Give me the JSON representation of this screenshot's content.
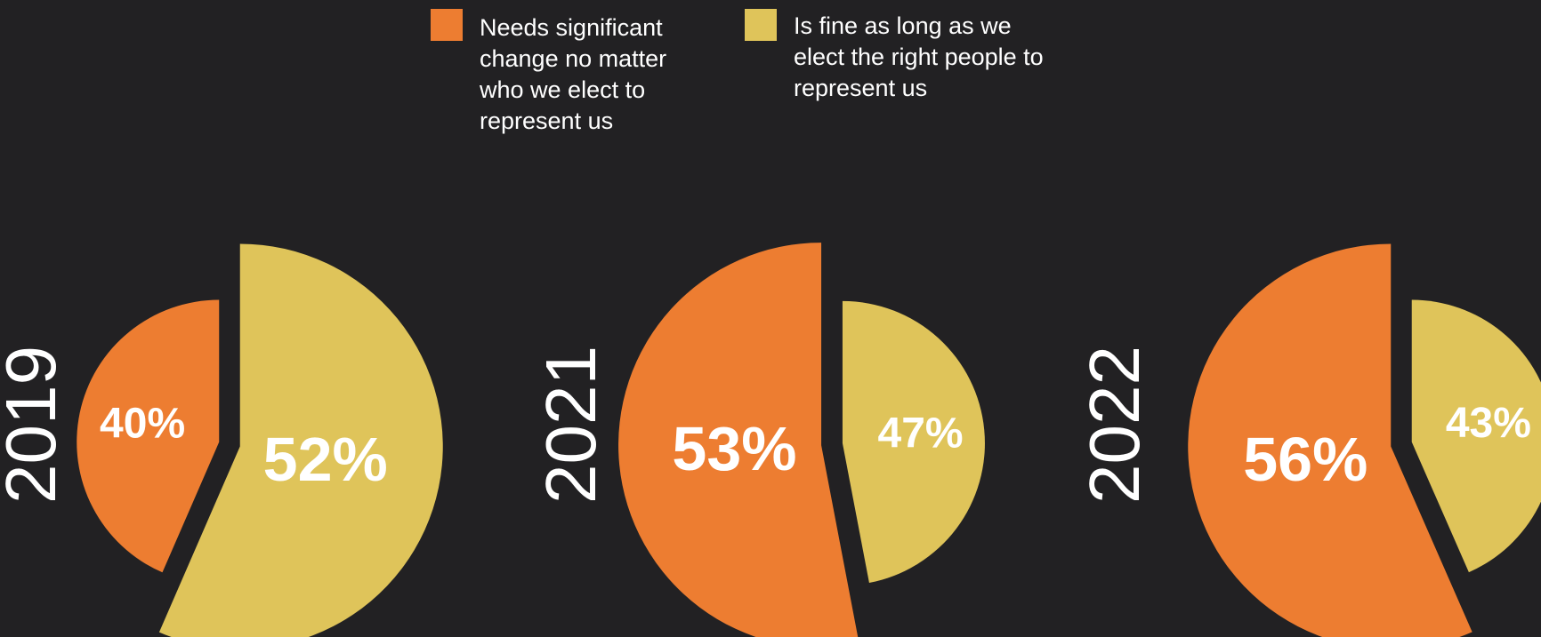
{
  "colors": {
    "background": "#222123",
    "series_a": "#ED7D31",
    "series_b": "#DFC45A"
  },
  "legend": [
    {
      "label": "Needs significant change no matter who we elect to represent us",
      "color": "#ED7D31"
    },
    {
      "label": "Is fine as long as we elect the right people to represent us",
      "color": "#DFC45A"
    }
  ],
  "chart_data": {
    "type": "pie",
    "series": [
      {
        "name": "Needs significant change no matter who we elect to represent us"
      },
      {
        "name": "Is fine as long as we elect the right people to represent us"
      }
    ],
    "charts": [
      {
        "year": "2019",
        "values": [
          40,
          52
        ],
        "labels": [
          "40%",
          "52%"
        ],
        "emphasized": 1
      },
      {
        "year": "2021",
        "values": [
          53,
          47
        ],
        "labels": [
          "53%",
          "47%"
        ],
        "emphasized": 0
      },
      {
        "year": "2022",
        "values": [
          56,
          43
        ],
        "labels": [
          "56%",
          "43%"
        ],
        "emphasized": 0
      }
    ]
  }
}
